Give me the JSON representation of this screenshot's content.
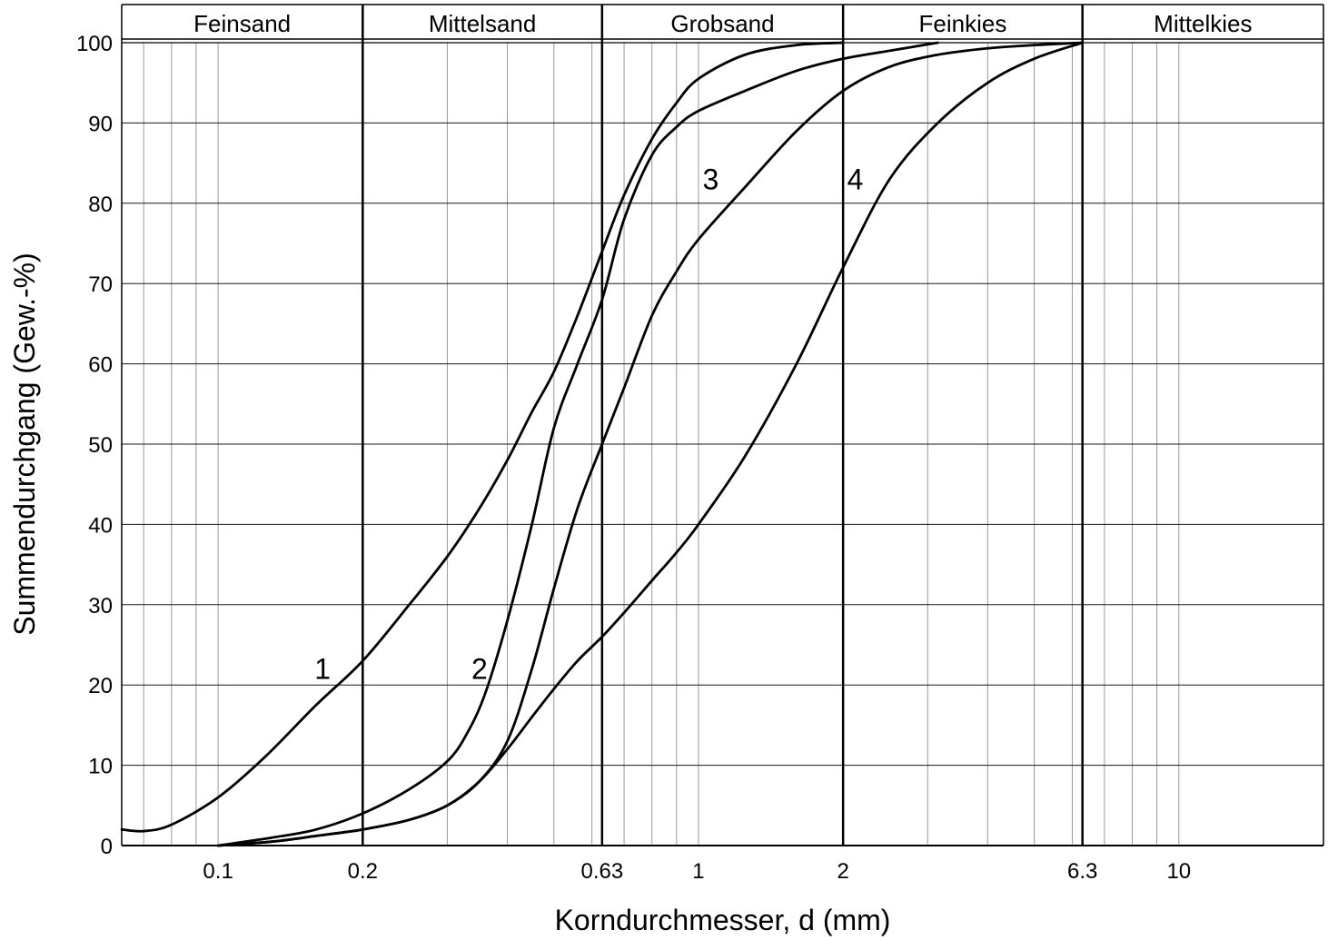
{
  "chart_data": {
    "type": "line",
    "xlabel": "Korndurchmesser, d (mm)",
    "ylabel": "Summendurchgang (Gew.-%)",
    "x_scale": "log",
    "xlim": [
      0.063,
      20
    ],
    "ylim": [
      0,
      100
    ],
    "x_ticks": [
      {
        "value": 0.1,
        "label": "0.1"
      },
      {
        "value": 0.2,
        "label": "0.2"
      },
      {
        "value": 0.63,
        "label": "0.63"
      },
      {
        "value": 1,
        "label": "1"
      },
      {
        "value": 2,
        "label": "2"
      },
      {
        "value": 6.3,
        "label": "6.3"
      },
      {
        "value": 10,
        "label": "10"
      }
    ],
    "y_ticks": [
      {
        "value": 0,
        "label": "0"
      },
      {
        "value": 10,
        "label": "10"
      },
      {
        "value": 20,
        "label": "20"
      },
      {
        "value": 30,
        "label": "30"
      },
      {
        "value": 40,
        "label": "40"
      },
      {
        "value": 50,
        "label": "50"
      },
      {
        "value": 60,
        "label": "60"
      },
      {
        "value": 70,
        "label": "70"
      },
      {
        "value": 80,
        "label": "80"
      },
      {
        "value": 90,
        "label": "90"
      },
      {
        "value": 100,
        "label": "100"
      }
    ],
    "grid": true,
    "zone_boundaries": [
      0.2,
      0.63,
      2,
      6.3
    ],
    "zones": [
      {
        "label": "Feinsand",
        "from": 0.063,
        "to": 0.2
      },
      {
        "label": "Mittelsand",
        "from": 0.2,
        "to": 0.63
      },
      {
        "label": "Grobsand",
        "from": 0.63,
        "to": 2
      },
      {
        "label": "Feinkies",
        "from": 2,
        "to": 6.3
      },
      {
        "label": "Mittelkies",
        "from": 6.3,
        "to": 20
      }
    ],
    "series": [
      {
        "label": "1",
        "label_at": [
          0.165,
          22
        ],
        "points": [
          [
            0.063,
            2
          ],
          [
            0.07,
            1.8
          ],
          [
            0.08,
            2.6
          ],
          [
            0.1,
            6
          ],
          [
            0.125,
            11
          ],
          [
            0.16,
            17.5
          ],
          [
            0.2,
            23
          ],
          [
            0.25,
            30
          ],
          [
            0.3,
            36
          ],
          [
            0.35,
            42
          ],
          [
            0.4,
            48
          ],
          [
            0.45,
            54
          ],
          [
            0.5,
            59
          ],
          [
            0.56,
            66
          ],
          [
            0.63,
            74
          ],
          [
            0.7,
            81
          ],
          [
            0.8,
            88
          ],
          [
            0.9,
            92.5
          ],
          [
            1.0,
            95.5
          ],
          [
            1.25,
            98.5
          ],
          [
            1.6,
            99.7
          ],
          [
            2.0,
            100
          ]
        ]
      },
      {
        "label": "2",
        "label_at": [
          0.35,
          22
        ],
        "points": [
          [
            0.1,
            0
          ],
          [
            0.13,
            1
          ],
          [
            0.16,
            2
          ],
          [
            0.2,
            4
          ],
          [
            0.25,
            7
          ],
          [
            0.3,
            10.5
          ],
          [
            0.33,
            14
          ],
          [
            0.36,
            19
          ],
          [
            0.4,
            28
          ],
          [
            0.45,
            40
          ],
          [
            0.5,
            52
          ],
          [
            0.56,
            60
          ],
          [
            0.63,
            68
          ],
          [
            0.7,
            78
          ],
          [
            0.8,
            86
          ],
          [
            0.9,
            89.5
          ],
          [
            1.0,
            91.5
          ],
          [
            1.25,
            94
          ],
          [
            1.6,
            96.5
          ],
          [
            2.0,
            98
          ],
          [
            2.5,
            99
          ],
          [
            3.15,
            100
          ]
        ]
      },
      {
        "label": "3",
        "label_at": [
          1.06,
          83
        ],
        "points": [
          [
            0.1,
            0
          ],
          [
            0.13,
            0.5
          ],
          [
            0.16,
            1.2
          ],
          [
            0.2,
            2
          ],
          [
            0.25,
            3.2
          ],
          [
            0.3,
            5
          ],
          [
            0.35,
            8
          ],
          [
            0.4,
            13
          ],
          [
            0.45,
            22
          ],
          [
            0.5,
            32
          ],
          [
            0.56,
            42
          ],
          [
            0.63,
            50
          ],
          [
            0.7,
            57
          ],
          [
            0.8,
            66
          ],
          [
            0.9,
            71.5
          ],
          [
            1.0,
            75.5
          ],
          [
            1.25,
            82
          ],
          [
            1.6,
            89
          ],
          [
            2.0,
            94
          ],
          [
            2.5,
            97
          ],
          [
            3.15,
            98.5
          ],
          [
            4,
            99.3
          ],
          [
            5,
            99.7
          ],
          [
            6.3,
            100
          ]
        ]
      },
      {
        "label": "4",
        "label_at": [
          2.12,
          83
        ],
        "points": [
          [
            0.1,
            0
          ],
          [
            0.13,
            0.5
          ],
          [
            0.16,
            1.2
          ],
          [
            0.2,
            2
          ],
          [
            0.25,
            3.2
          ],
          [
            0.3,
            5
          ],
          [
            0.35,
            8
          ],
          [
            0.4,
            12
          ],
          [
            0.45,
            16
          ],
          [
            0.5,
            19.5
          ],
          [
            0.56,
            23
          ],
          [
            0.63,
            26
          ],
          [
            0.7,
            29
          ],
          [
            0.8,
            33
          ],
          [
            0.9,
            36.5
          ],
          [
            1.0,
            40
          ],
          [
            1.25,
            48.5
          ],
          [
            1.6,
            60
          ],
          [
            2.0,
            72
          ],
          [
            2.5,
            83
          ],
          [
            3.15,
            90
          ],
          [
            4,
            95
          ],
          [
            5,
            98
          ],
          [
            6.3,
            100
          ]
        ]
      }
    ]
  }
}
